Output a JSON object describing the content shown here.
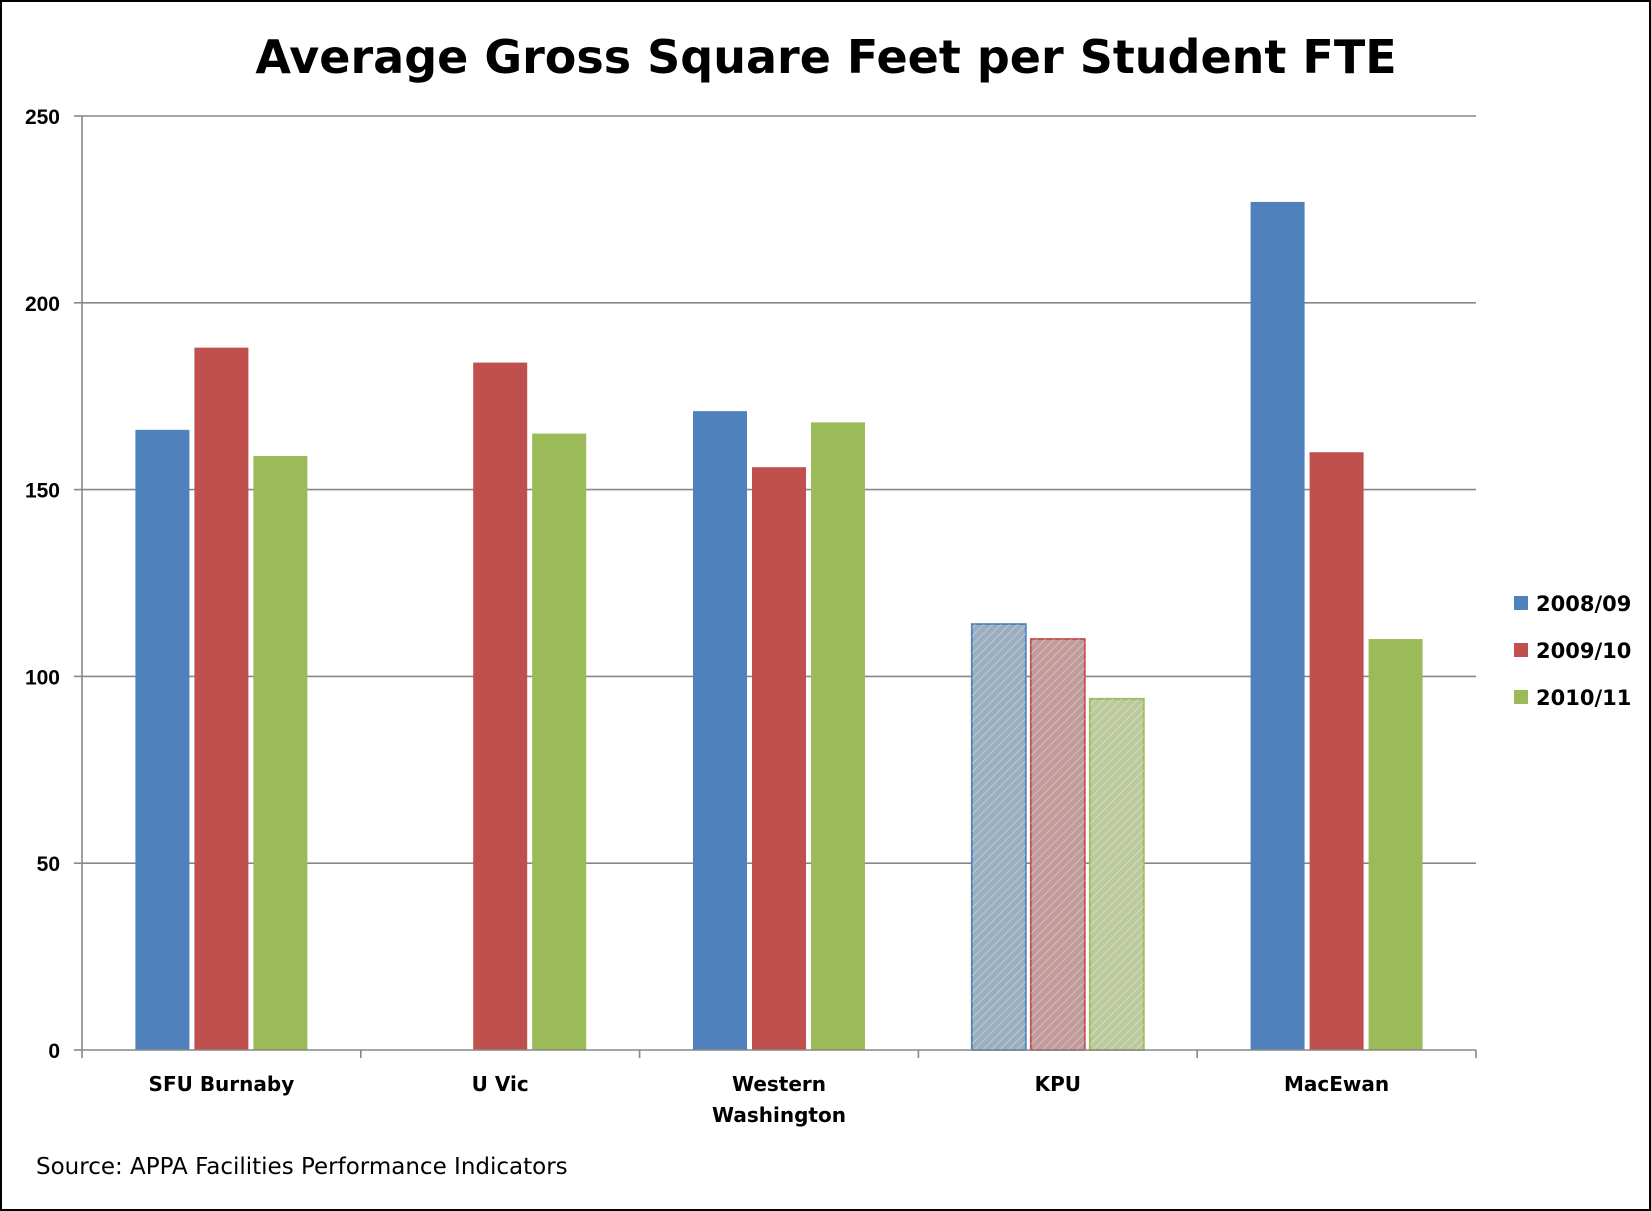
{
  "chart_data": {
    "type": "bar",
    "title": "Average Gross Square Feet per Student FTE",
    "categories": [
      "SFU Burnaby",
      "U Vic",
      "Western Washington",
      "KPU",
      "MacEwan"
    ],
    "category_lines": [
      [
        "SFU Burnaby"
      ],
      [
        "U Vic"
      ],
      [
        "Western",
        "Washington"
      ],
      [
        "KPU"
      ],
      [
        "MacEwan"
      ]
    ],
    "series": [
      {
        "name": "2008/09",
        "color": "#4f81bd",
        "values": [
          166,
          null,
          171,
          114,
          227
        ]
      },
      {
        "name": "2009/10",
        "color": "#c0504d",
        "values": [
          188,
          184,
          156,
          110,
          160
        ]
      },
      {
        "name": "2010/11",
        "color": "#9bbb59",
        "values": [
          159,
          165,
          168,
          94,
          110
        ]
      }
    ],
    "hatched_categories": [
      "KPU"
    ],
    "hatched_colors": {
      "2008/09": "#9aaebf",
      "2009/10": "#c19a9a",
      "2010/11": "#bcc99c"
    },
    "yticks": [
      0,
      50,
      100,
      150,
      200,
      250
    ],
    "ylim": [
      0,
      250
    ],
    "grid": true,
    "legend_position": "right",
    "xlabel": "",
    "ylabel": ""
  },
  "source_note": "Source: APPA Facilities Performance Indicators"
}
